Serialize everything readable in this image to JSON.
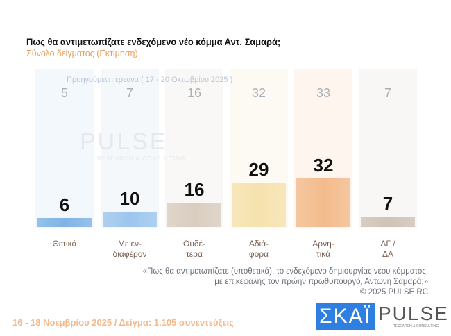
{
  "title": "Πως θα αντιμετωπίζατε ενδεχόμενο νέο κόμμα Αντ. Σαμαρά;",
  "subtitle": "Σύνολο δείγματος   (Εκτίμηση)",
  "chart_data": {
    "type": "bar",
    "categories": [
      "Θετικά",
      "Με εν-\nδιαφέρον",
      "Ουδέ-\nτερα",
      "Αδιά-\nφορα",
      "Αρνη-\nτικά",
      "ΔΓ /\nΔΑ"
    ],
    "values": [
      6,
      10,
      16,
      29,
      32,
      7
    ],
    "previous": {
      "label": "Προηγούμενη έρευνα ( 17 - 20 Οκτωβρίου 2025 )",
      "values": [
        5,
        7,
        16,
        32,
        33,
        7
      ]
    },
    "colors": [
      "#7fb3e6",
      "#9cc6ee",
      "#d9cdbf",
      "#f6e2ad",
      "#f3bb8c",
      "#cfc3b6"
    ],
    "panel_colors": [
      "#f3f8fd",
      "#f5f8fb",
      "#faf8f6",
      "#fdfaf3",
      "#fef6ee",
      "#f8f7f5"
    ],
    "ylim": [
      0,
      100
    ]
  },
  "watermark": "PULSE",
  "watermark_sub": "RESEARCH & CONSULTING",
  "quote_line1": "«Πως θα αντιμετωπίζατε (υποθετικά), το ενδεχόμενο δημιουργίας νέου κόμματος,",
  "quote_line2": "με επικεφαλής τον πρώην πρωθυπουργό, Αντώνη Σαμαρά;»",
  "copyright": "©  2025  PULSE RC",
  "footer": "16 - 18 Νοεμβρίου 2025  /  Δείγμα:  1.105 συνεντεύξεις",
  "logo_skai": "ΣΚΑΪ",
  "logo_pulse": "PULSE",
  "logo_pulse_sub": "RESEARCH & CONSULTING"
}
